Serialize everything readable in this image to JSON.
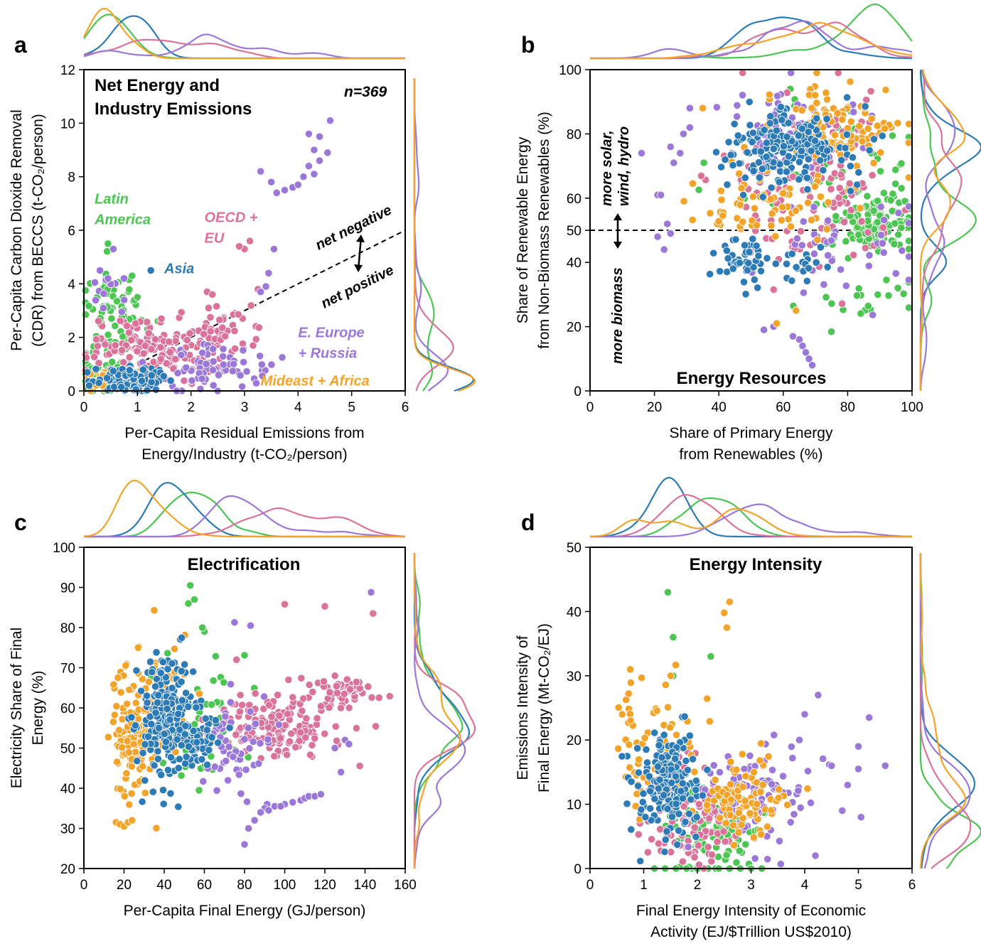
{
  "colors": {
    "Latin America": "#4cc552",
    "Asia": "#2d7bb6",
    "OECD + EU": "#d9739a",
    "E. Europe + Russia": "#9b78d8",
    "Mideast + Africa": "#f2a42a"
  },
  "chart_data": [
    {
      "panel": "a",
      "type": "scatter",
      "title": "Net Energy and Industry Emissions",
      "n_label": "n=369",
      "xlabel": [
        "Per-Capita Residual Emissions from",
        "Energy/Industry (t-CO₂/person)"
      ],
      "ylabel": [
        "Per-Capita Carbon Dioxide Removal",
        "(CDR) from BECCS (t-CO₂/person)"
      ],
      "xlim": [
        0,
        6
      ],
      "ylim": [
        0,
        12
      ],
      "xticks": [
        0,
        1,
        2,
        3,
        4,
        5,
        6
      ],
      "yticks": [
        0,
        2,
        4,
        6,
        8,
        10,
        12
      ],
      "reference_line": {
        "x": [
          0,
          6
        ],
        "y": [
          0,
          6
        ],
        "style": "dashed"
      },
      "annotations": {
        "above": "net negative",
        "below": "net positive"
      },
      "region_labels": [
        {
          "name": "Latin America",
          "lines": [
            "Latin",
            "America"
          ],
          "x": 0.2,
          "y": 7.0
        },
        {
          "name": "OECD + EU",
          "lines": [
            "OECD +",
            "EU"
          ],
          "x": 2.25,
          "y": 6.3
        },
        {
          "name": "Asia",
          "lines": [
            "Asia"
          ],
          "x": 1.5,
          "y": 4.4
        },
        {
          "name": "E. Europe + Russia",
          "lines": [
            "E. Europe",
            "+ Russia"
          ],
          "x": 4.0,
          "y": 2.0
        },
        {
          "name": "Mideast + Africa",
          "lines": [
            "Mideast + Africa"
          ],
          "x": 3.3,
          "y": 0.2
        }
      ],
      "series": [
        {
          "name": "Latin America",
          "clusters": [
            {
              "cx": 0.6,
              "cy": 2.8,
              "sx": 0.3,
              "sy": 0.8,
              "n": 70
            },
            {
              "cx": 0.3,
              "cy": 0.8,
              "sx": 0.25,
              "sy": 0.4,
              "n": 40
            }
          ],
          "points": [
            [
              0.45,
              5.5
            ],
            [
              0.9,
              4.3
            ],
            [
              0.6,
              4.0
            ],
            [
              1.0,
              3.5
            ]
          ]
        },
        {
          "name": "Asia",
          "clusters": [
            {
              "cx": 0.9,
              "cy": 0.45,
              "sx": 0.35,
              "sy": 0.25,
              "n": 140
            }
          ],
          "points": [
            [
              1.25,
              4.5
            ]
          ]
        },
        {
          "name": "OECD + EU",
          "clusters": [
            {
              "cx": 1.3,
              "cy": 1.6,
              "sx": 0.6,
              "sy": 0.5,
              "n": 150
            },
            {
              "cx": 2.6,
              "cy": 2.2,
              "sx": 0.35,
              "sy": 0.5,
              "n": 40
            }
          ],
          "points": [
            [
              3.0,
              5.3
            ],
            [
              3.1,
              5.6
            ],
            [
              2.9,
              5.4
            ],
            [
              3.25,
              3.8
            ],
            [
              2.3,
              3.7
            ],
            [
              2.4,
              3.6
            ]
          ]
        },
        {
          "name": "E. Europe + Russia",
          "clusters": [
            {
              "cx": 2.4,
              "cy": 0.9,
              "sx": 0.55,
              "sy": 0.45,
              "n": 80
            },
            {
              "cx": 0.4,
              "cy": 3.6,
              "sx": 0.25,
              "sy": 0.4,
              "n": 10
            }
          ],
          "points": [
            [
              4.6,
              10.1
            ],
            [
              4.2,
              9.6
            ],
            [
              4.4,
              9.5
            ],
            [
              4.3,
              9.0
            ],
            [
              4.55,
              8.9
            ],
            [
              4.4,
              8.6
            ],
            [
              4.2,
              8.4
            ],
            [
              4.3,
              8.1
            ],
            [
              4.1,
              8.0
            ],
            [
              3.3,
              8.2
            ],
            [
              3.5,
              7.8
            ],
            [
              3.75,
              7.5
            ],
            [
              3.9,
              7.6
            ],
            [
              4.0,
              7.7
            ],
            [
              3.6,
              7.4
            ],
            [
              3.55,
              5.3
            ],
            [
              3.45,
              4.4
            ],
            [
              3.3,
              3.7
            ],
            [
              3.4,
              3.9
            ],
            [
              0.55,
              5.3
            ],
            [
              0.3,
              4.5
            ],
            [
              0.45,
              4.2
            ],
            [
              0.75,
              4.2
            ]
          ]
        },
        {
          "name": "Mideast + Africa",
          "clusters": [
            {
              "cx": 0.4,
              "cy": 0.35,
              "sx": 0.25,
              "sy": 0.2,
              "n": 25
            }
          ],
          "points": []
        }
      ]
    },
    {
      "panel": "b",
      "type": "scatter",
      "title": "Energy Resources",
      "xlabel": [
        "Share of Primary Energy",
        "from Renewables (%)"
      ],
      "ylabel": [
        "Share of Renewable Energy",
        "from Non-Biomass Renewables (%)"
      ],
      "xlim": [
        0,
        100
      ],
      "ylim": [
        0,
        100
      ],
      "xticks": [
        0,
        20,
        40,
        60,
        80,
        100
      ],
      "yticks": [
        0,
        20,
        40,
        50,
        60,
        80,
        100
      ],
      "reference_line": {
        "y": 50,
        "style": "dashed"
      },
      "annotations": {
        "above": [
          "more solar,",
          "wind, hydro"
        ],
        "below": [
          "more biomass"
        ]
      },
      "series": [
        {
          "name": "Latin America",
          "clusters": [
            {
              "cx": 88,
              "cy": 52,
              "sx": 6,
              "sy": 5,
              "n": 120
            },
            {
              "cx": 70,
              "cy": 70,
              "sx": 14,
              "sy": 12,
              "n": 50
            },
            {
              "cx": 85,
              "cy": 28,
              "sx": 8,
              "sy": 3,
              "n": 20
            }
          ],
          "points": []
        },
        {
          "name": "Asia",
          "clusters": [
            {
              "cx": 62,
              "cy": 76,
              "sx": 10,
              "sy": 6,
              "n": 200
            },
            {
              "cx": 47,
              "cy": 40,
              "sx": 4,
              "sy": 5,
              "n": 45
            },
            {
              "cx": 65,
              "cy": 38,
              "sx": 4,
              "sy": 3,
              "n": 20
            }
          ],
          "points": []
        },
        {
          "name": "OECD + EU",
          "clusters": [
            {
              "cx": 68,
              "cy": 65,
              "sx": 14,
              "sy": 12,
              "n": 130
            }
          ],
          "points": []
        },
        {
          "name": "E. Europe + Russia",
          "clusters": [
            {
              "cx": 60,
              "cy": 82,
              "sx": 12,
              "sy": 6,
              "n": 60
            },
            {
              "cx": 80,
              "cy": 45,
              "sx": 12,
              "sy": 8,
              "n": 40
            }
          ],
          "points": [
            [
              28,
              74
            ],
            [
              29,
              80
            ],
            [
              31,
              82
            ],
            [
              31,
              88
            ],
            [
              25,
              76
            ],
            [
              26,
              71
            ],
            [
              21,
              61
            ],
            [
              22,
              61
            ],
            [
              24,
              52
            ],
            [
              21,
              48
            ],
            [
              23,
              44
            ],
            [
              25,
              49
            ],
            [
              65,
              16
            ],
            [
              66,
              14
            ],
            [
              67,
              12
            ],
            [
              68,
              10
            ],
            [
              69,
              8
            ],
            [
              63,
              17
            ],
            [
              57,
              20
            ],
            [
              54,
              19
            ],
            [
              16,
              74
            ]
          ]
        },
        {
          "name": "Mideast + Africa",
          "clusters": [
            {
              "cx": 75,
              "cy": 82,
              "sx": 10,
              "sy": 6,
              "n": 110
            },
            {
              "cx": 55,
              "cy": 58,
              "sx": 10,
              "sy": 5,
              "n": 70
            }
          ],
          "points": [
            [
              35,
              88
            ],
            [
              58,
              21
            ],
            [
              64,
              25
            ]
          ]
        }
      ]
    },
    {
      "panel": "c",
      "type": "scatter",
      "title": "Electrification",
      "xlabel": [
        "Per-Capita Final Energy (GJ/person)"
      ],
      "ylabel": [
        "Electricity Share of Final",
        "Energy (%)"
      ],
      "xlim": [
        0,
        160
      ],
      "ylim": [
        20,
        100
      ],
      "xticks": [
        0,
        20,
        40,
        60,
        80,
        100,
        120,
        140,
        160
      ],
      "yticks": [
        20,
        30,
        40,
        50,
        60,
        70,
        80,
        90,
        100
      ],
      "series": [
        {
          "name": "Latin America",
          "clusters": [
            {
              "cx": 55,
              "cy": 58,
              "sx": 12,
              "sy": 8,
              "n": 60
            }
          ],
          "points": [
            [
              53,
              90.5
            ],
            [
              52,
              86
            ],
            [
              55,
              87
            ],
            [
              60,
              79
            ],
            [
              59,
              80
            ]
          ]
        },
        {
          "name": "Asia",
          "clusters": [
            {
              "cx": 42,
              "cy": 57,
              "sx": 8,
              "sy": 8,
              "n": 230
            },
            {
              "cx": 58,
              "cy": 52,
              "sx": 7,
              "sy": 3,
              "n": 40
            }
          ],
          "points": []
        },
        {
          "name": "OECD + EU",
          "clusters": [
            {
              "cx": 95,
              "cy": 55,
              "sx": 18,
              "sy": 4,
              "n": 150
            },
            {
              "cx": 130,
              "cy": 64,
              "sx": 8,
              "sy": 2,
              "n": 50
            }
          ],
          "points": [
            [
              144,
              83.5
            ],
            [
              120,
              85.3
            ],
            [
              100,
              85.8
            ],
            [
              76,
              72
            ],
            [
              125,
              68
            ]
          ]
        },
        {
          "name": "E. Europe + Russia",
          "clusters": [
            {
              "cx": 75,
              "cy": 48,
              "sx": 10,
              "sy": 6,
              "n": 60
            }
          ],
          "points": [
            [
              143,
              88.8
            ],
            [
              75,
              81.3
            ],
            [
              83,
              80.5
            ],
            [
              80,
              26
            ],
            [
              82,
              30
            ],
            [
              85,
              32
            ],
            [
              90,
              35
            ],
            [
              95,
              35.5
            ],
            [
              100,
              36
            ],
            [
              104,
              36.5
            ],
            [
              108,
              37
            ],
            [
              110,
              37.5
            ],
            [
              112,
              38
            ],
            [
              115,
              38
            ],
            [
              118,
              38.5
            ],
            [
              88,
              34
            ],
            [
              92,
              34.5
            ],
            [
              98,
              35.5
            ],
            [
              128,
              44
            ],
            [
              125,
              50
            ],
            [
              130,
              52
            ],
            [
              132,
              51
            ]
          ]
        },
        {
          "name": "Mideast + Africa",
          "clusters": [
            {
              "cx": 25,
              "cy": 52,
              "sx": 5,
              "sy": 9,
              "n": 120
            },
            {
              "cx": 40,
              "cy": 62,
              "sx": 7,
              "sy": 7,
              "n": 60
            }
          ],
          "points": [
            [
              16,
              31.5
            ],
            [
              18,
              31
            ],
            [
              20,
              30.5
            ],
            [
              22,
              31.5
            ],
            [
              24,
              32
            ],
            [
              17,
              67.5
            ],
            [
              27,
              75
            ],
            [
              35,
              84.3
            ]
          ]
        }
      ]
    },
    {
      "panel": "d",
      "type": "scatter",
      "title": "Energy Intensity",
      "xlabel": [
        "Final Energy Intensity of Economic",
        "Activity (EJ/$Trillion US$2010)"
      ],
      "ylabel": [
        "Emissions Intensity of",
        "Final Energy (Mt-CO₂/EJ)"
      ],
      "xlim": [
        0,
        6
      ],
      "ylim": [
        0,
        50
      ],
      "xticks": [
        0,
        1,
        2,
        3,
        4,
        5,
        6
      ],
      "yticks": [
        0,
        10,
        20,
        30,
        40,
        50
      ],
      "series": [
        {
          "name": "Latin America",
          "clusters": [
            {
              "cx": 2.3,
              "cy": 6,
              "sx": 0.45,
              "sy": 3,
              "n": 100
            }
          ],
          "points": [
            [
              1.45,
              43
            ],
            [
              1.55,
              36
            ],
            [
              2.25,
              33
            ],
            [
              1.55,
              30
            ],
            [
              1.2,
              0
            ],
            [
              1.4,
              0
            ],
            [
              1.6,
              0
            ],
            [
              1.8,
              0
            ],
            [
              2.0,
              0
            ],
            [
              2.2,
              0
            ],
            [
              2.4,
              0
            ],
            [
              2.6,
              0
            ],
            [
              2.8,
              0
            ],
            [
              3.0,
              0
            ],
            [
              3.2,
              0
            ]
          ]
        },
        {
          "name": "Asia",
          "clusters": [
            {
              "cx": 1.5,
              "cy": 14,
              "sx": 0.28,
              "sy": 4,
              "n": 180
            }
          ],
          "points": []
        },
        {
          "name": "OECD + EU",
          "clusters": [
            {
              "cx": 1.9,
              "cy": 8,
              "sx": 0.45,
              "sy": 4,
              "n": 110
            }
          ],
          "points": []
        },
        {
          "name": "E. Europe + Russia",
          "clusters": [
            {
              "cx": 3.1,
              "cy": 12,
              "sx": 0.55,
              "sy": 4,
              "n": 90
            }
          ],
          "points": [
            [
              5.2,
              23.5
            ],
            [
              5.5,
              16
            ],
            [
              5.0,
              19
            ],
            [
              5.05,
              8
            ],
            [
              4.7,
              9
            ],
            [
              4.8,
              13
            ],
            [
              4.5,
              16
            ],
            [
              4.25,
              27
            ],
            [
              4.0,
              24
            ],
            [
              3.9,
              20
            ],
            [
              4.2,
              2
            ],
            [
              5.0,
              15.5
            ]
          ]
        },
        {
          "name": "Mideast + Africa",
          "clusters": [
            {
              "cx": 1.2,
              "cy": 18,
              "sx": 0.4,
              "sy": 6,
              "n": 70
            },
            {
              "cx": 2.8,
              "cy": 11,
              "sx": 0.4,
              "sy": 3,
              "n": 90
            }
          ],
          "points": [
            [
              2.5,
              39.8
            ],
            [
              2.6,
              41.5
            ],
            [
              2.55,
              37.5
            ],
            [
              0.75,
              31
            ],
            [
              0.6,
              24
            ]
          ]
        }
      ]
    }
  ]
}
